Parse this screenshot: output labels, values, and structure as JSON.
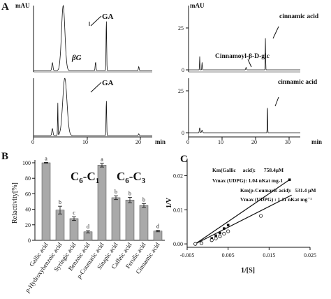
{
  "panel_labels": {
    "a": "A",
    "b": "B",
    "c": "C"
  },
  "chart_data": [
    {
      "type": "line",
      "id": "chromatogram-left-top",
      "ylabel": "mAU",
      "xlabel": "",
      "xlim": [
        0,
        22
      ],
      "ylim": [
        0,
        100
      ],
      "xticks": [],
      "yticks": [],
      "peaks": [
        {
          "x": 3.5,
          "height": 12
        },
        {
          "x": 5.5,
          "height": 100
        },
        {
          "x": 11.5,
          "height": 13,
          "label": "βG"
        },
        {
          "x": 13.5,
          "height": 78,
          "label": "GA"
        },
        {
          "x": 19.5,
          "height": 6
        }
      ]
    },
    {
      "type": "line",
      "id": "chromatogram-left-bottom",
      "ylabel": "",
      "xlabel": "min",
      "xlim": [
        0,
        22
      ],
      "ylim": [
        0,
        100
      ],
      "xticks": [
        0,
        10,
        20
      ],
      "yticks": [],
      "peaks": [
        {
          "x": 3.5,
          "height": 12
        },
        {
          "x": 4.5,
          "height": 57
        },
        {
          "x": 5.8,
          "height": 100
        },
        {
          "x": 13.5,
          "height": 62,
          "label": "GA"
        },
        {
          "x": 19.5,
          "height": 3
        }
      ]
    },
    {
      "type": "line",
      "id": "chromatogram-right-top",
      "ylabel": "mAU",
      "xlabel": "",
      "xlim": [
        0,
        33
      ],
      "ylim": [
        0,
        30
      ],
      "xticks": [],
      "yticks": [
        0,
        25
      ],
      "peaks": [
        {
          "x": 3.3,
          "height": 8
        },
        {
          "x": 4.0,
          "height": 4.5
        },
        {
          "x": 17.0,
          "height": 1.5,
          "label": "Cinnamoyl-β-D-glc"
        },
        {
          "x": 22.7,
          "height": 19,
          "label": "cinnamic acid"
        }
      ]
    },
    {
      "type": "line",
      "id": "chromatogram-right-bottom",
      "ylabel": "",
      "xlabel": "min",
      "xlim": [
        0,
        33
      ],
      "ylim": [
        0,
        30
      ],
      "xticks": [
        0,
        10,
        20,
        30
      ],
      "yticks": [
        0,
        25
      ],
      "peaks": [
        {
          "x": 3.3,
          "height": 3
        },
        {
          "x": 4.0,
          "height": 1.5
        },
        {
          "x": 23.3,
          "height": 18,
          "label": "cinnamic acid"
        }
      ]
    },
    {
      "type": "bar",
      "id": "relative-activity",
      "ylabel": "Relactivity[%]",
      "ylim": [
        0,
        100
      ],
      "yticks": [
        0,
        20,
        40,
        60,
        80,
        100
      ],
      "group_labels": [
        "C6-C1",
        "C6-C3"
      ],
      "categories": [
        "Gallic acid",
        "p-Hydroxybenzoic acid",
        "Syringic acid",
        "Benzoic acid",
        "p-Coumaric acid",
        "Sinapic acid",
        "Caffeic acid",
        "Ferulic acid",
        "Cinnamic acid"
      ],
      "values": [
        100,
        39,
        28,
        11,
        97,
        55,
        52,
        45,
        12
      ],
      "errors": [
        0.5,
        5,
        2.5,
        1.5,
        2.5,
        2.5,
        3.5,
        2.5,
        1
      ],
      "letters": [
        "a",
        "b",
        "c",
        "d",
        "a",
        "b",
        "b",
        "b",
        "d"
      ]
    },
    {
      "type": "scatter",
      "id": "lineweaver-burk",
      "xlabel": "1/[S]",
      "ylabel": "1/V",
      "xlim": [
        -0.005,
        0.025
      ],
      "ylim": [
        -0.001,
        0.025
      ],
      "xticks": [
        -0.005,
        0.005,
        0.015,
        0.025
      ],
      "xtick_labels": [
        "-0.005",
        "0.005",
        "0.015",
        "0.025"
      ],
      "yticks": [
        0.0,
        0.01,
        0.02
      ],
      "ytick_labels": [
        "0.00",
        "0.01",
        "0.02"
      ],
      "series": [
        {
          "x": [
            -0.003,
            -0.0015,
            0.001,
            0.002,
            0.003,
            0.004,
            0.005,
            0.02
          ],
          "y": [
            0.0,
            0.0003,
            0.0016,
            0.0024,
            0.0032,
            0.0045,
            0.0055,
            0.0188
          ],
          "line": [
            [
              -0.003,
              0.0
            ],
            [
              0.02,
              0.0188
            ]
          ]
        },
        {
          "x": [
            -0.003,
            -0.0015,
            0.001,
            0.002,
            0.003,
            0.004,
            0.005,
            0.013
          ],
          "y": [
            0.0,
            0.0002,
            0.0011,
            0.0016,
            0.0022,
            0.003,
            0.0037,
            0.0082
          ],
          "line": [
            [
              -0.003,
              0.0
            ],
            [
              0.0205,
              0.0143
            ]
          ]
        }
      ],
      "annotations": [
        {
          "k_label": "Km(Gallic",
          "k_label2": "acid):",
          "k_value": "758.4μM",
          "v_label": "Vmax (UDPG): 1.04 nKat mg-1"
        },
        {
          "k_label": "Km(p-Coumaric acid):",
          "k_value": "531.4 μM",
          "v_label": "Vmax (UDPG) : 1.11 nKat mg⁻¹"
        }
      ]
    }
  ]
}
